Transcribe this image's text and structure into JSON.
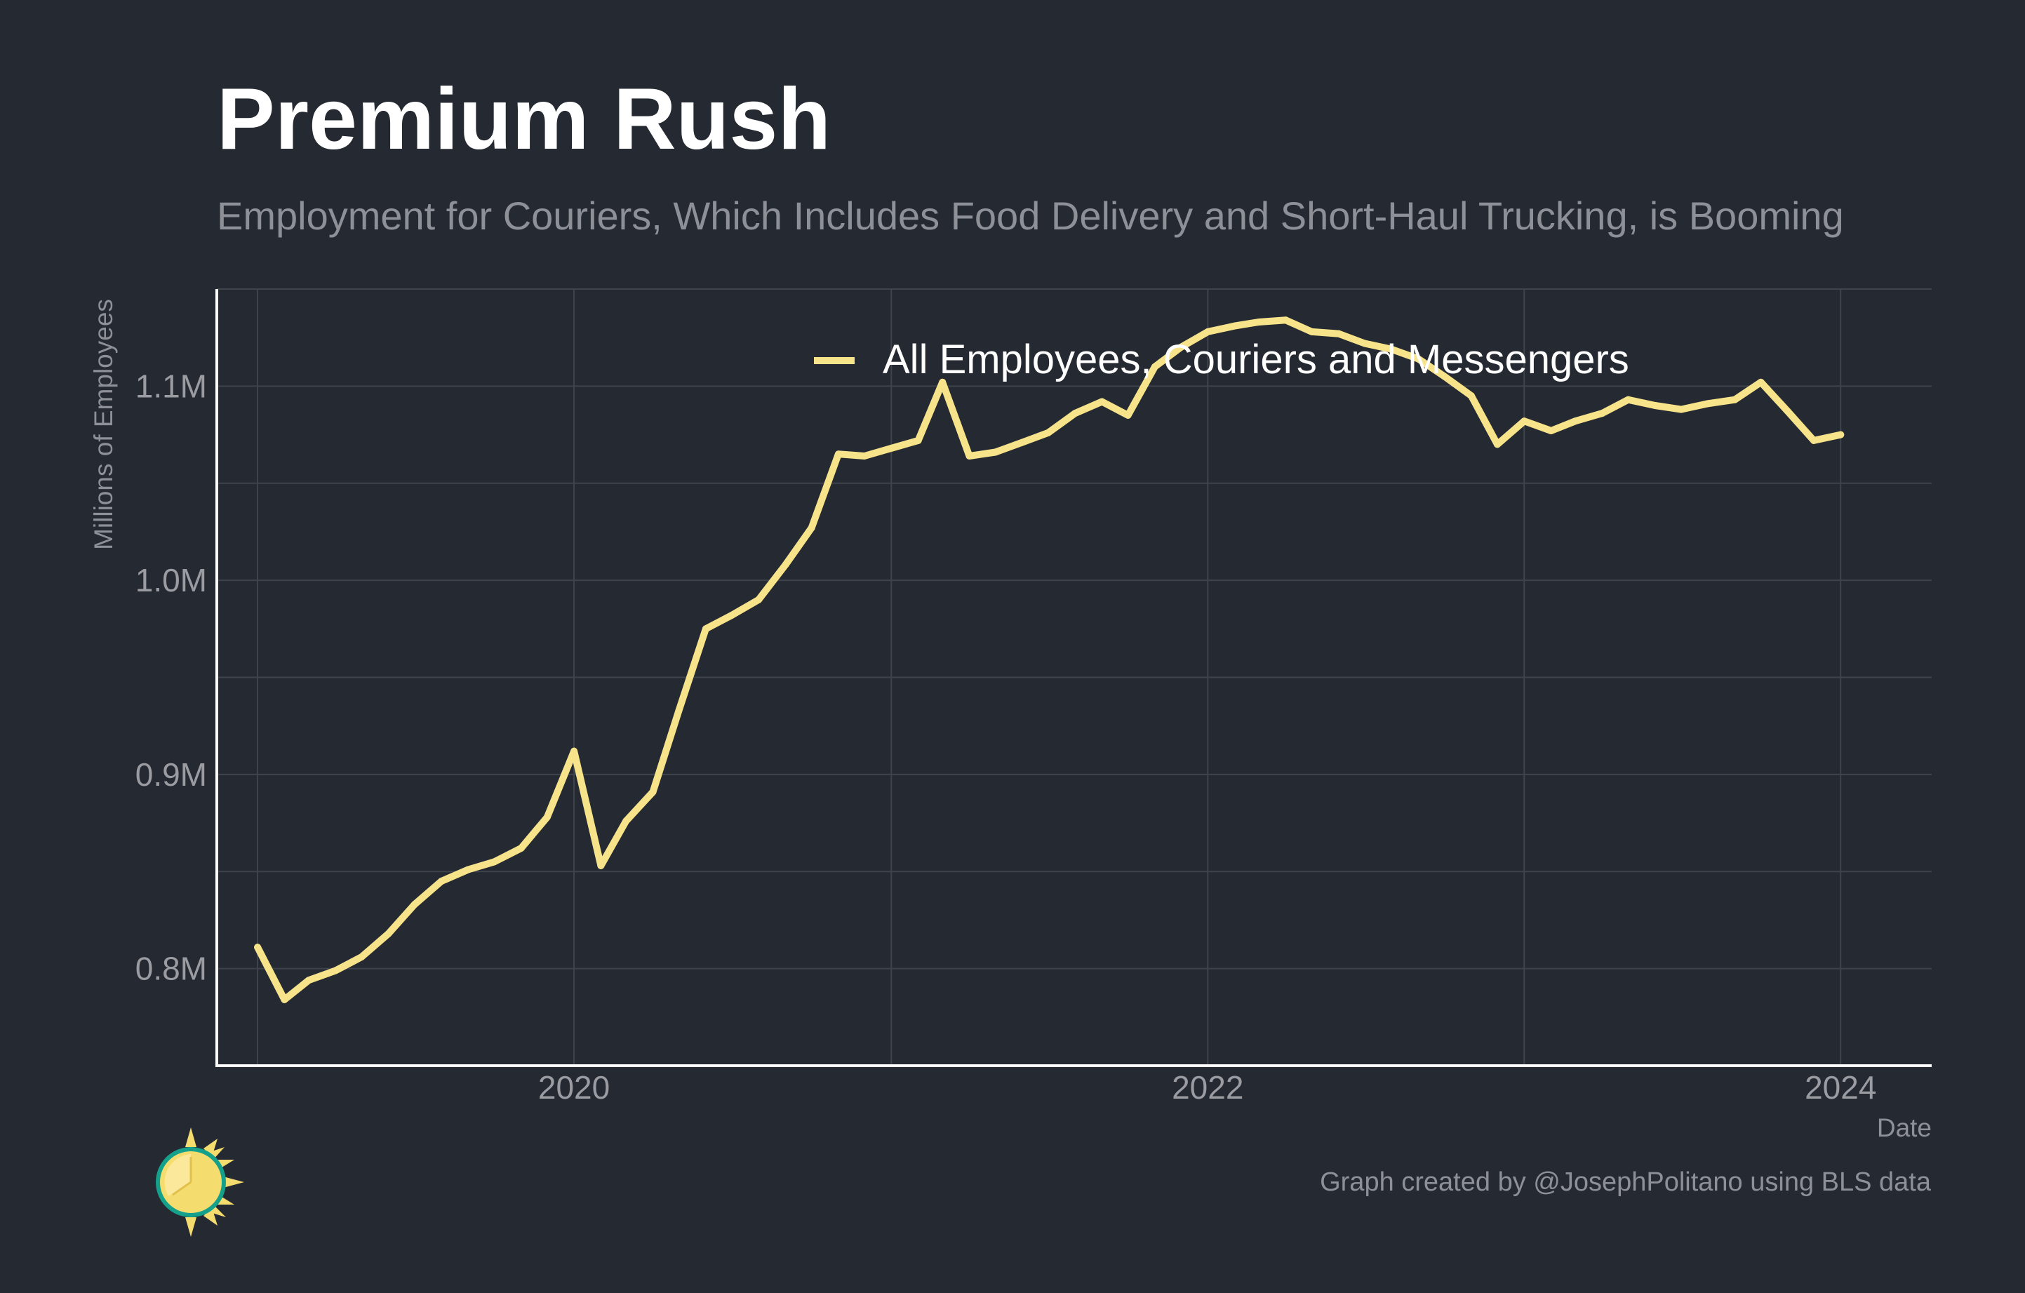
{
  "title": "Premium Rush",
  "subtitle": "Employment for Couriers, Which Includes Food Delivery and Short-Haul Trucking, is Booming",
  "source": "Graph created by @JosephPolitano using BLS data",
  "colors": {
    "background": "#252931",
    "line": "#f7e48a",
    "grid": "#3f434b",
    "axis": "#ffffff",
    "muted_text": "#8e9097",
    "tick_text": "#9a9ca2"
  },
  "logo_icon": "sun-clock-icon",
  "chart_data": {
    "type": "line",
    "xlabel": "Date",
    "ylabel": "Millions of Employees",
    "xlim": [
      "2018-11-15",
      "2024-04-15"
    ],
    "ylim": [
      0.75,
      1.15
    ],
    "x_ticks": [
      {
        "date": "2020-01-01",
        "label": "2020"
      },
      {
        "date": "2022-01-01",
        "label": "2022"
      },
      {
        "date": "2024-01-01",
        "label": "2024"
      }
    ],
    "y_ticks": [
      {
        "value": 0.8,
        "label": "0.8M"
      },
      {
        "value": 0.9,
        "label": "0.9M"
      },
      {
        "value": 1.0,
        "label": "1.0M"
      },
      {
        "value": 1.1,
        "label": "1.1M"
      }
    ],
    "legend": "top-center",
    "grid": true,
    "series": [
      {
        "name": "All Employees, Couriers and Messengers",
        "x": [
          "2019-01",
          "2019-02",
          "2019-03",
          "2019-04",
          "2019-05",
          "2019-06",
          "2019-07",
          "2019-08",
          "2019-09",
          "2019-10",
          "2019-11",
          "2019-12",
          "2020-01",
          "2020-02",
          "2020-03",
          "2020-04",
          "2020-05",
          "2020-06",
          "2020-07",
          "2020-08",
          "2020-09",
          "2020-10",
          "2020-11",
          "2020-12",
          "2021-01",
          "2021-02",
          "2021-03",
          "2021-04",
          "2021-05",
          "2021-06",
          "2021-07",
          "2021-08",
          "2021-09",
          "2021-10",
          "2021-11",
          "2021-12",
          "2022-01",
          "2022-02",
          "2022-03",
          "2022-04",
          "2022-05",
          "2022-06",
          "2022-07",
          "2022-08",
          "2022-09",
          "2022-10",
          "2022-11",
          "2022-12",
          "2023-01",
          "2023-02",
          "2023-03",
          "2023-04",
          "2023-05",
          "2023-06",
          "2023-07",
          "2023-08",
          "2023-09",
          "2023-10",
          "2023-11",
          "2023-12",
          "2024-01"
        ],
        "values": [
          0.811,
          0.784,
          0.794,
          0.799,
          0.806,
          0.818,
          0.833,
          0.845,
          0.851,
          0.855,
          0.862,
          0.878,
          0.912,
          0.853,
          0.876,
          0.891,
          0.933,
          0.975,
          0.982,
          0.99,
          1.008,
          1.027,
          1.065,
          1.064,
          1.068,
          1.072,
          1.102,
          1.064,
          1.066,
          1.071,
          1.076,
          1.086,
          1.092,
          1.085,
          1.11,
          1.12,
          1.128,
          1.131,
          1.133,
          1.134,
          1.128,
          1.127,
          1.122,
          1.119,
          1.114,
          1.105,
          1.095,
          1.07,
          1.082,
          1.077,
          1.082,
          1.086,
          1.093,
          1.09,
          1.088,
          1.091,
          1.093,
          1.102,
          1.087,
          1.072,
          1.075
        ]
      }
    ]
  }
}
